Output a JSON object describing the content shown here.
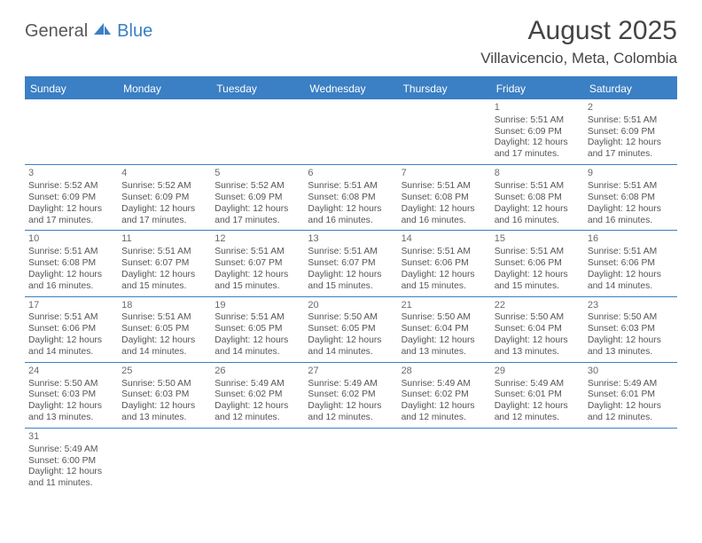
{
  "logo": {
    "word1": "General",
    "word2": "Blue",
    "icon_color": "#3b7fc4",
    "text1_color": "#585858"
  },
  "title": "August 2025",
  "location": "Villavicencio, Meta, Colombia",
  "header_bg": "#3b7fc4",
  "weekdays": [
    "Sunday",
    "Monday",
    "Tuesday",
    "Wednesday",
    "Thursday",
    "Friday",
    "Saturday"
  ],
  "leading_blanks": 5,
  "days": [
    {
      "n": 1,
      "sr": "5:51 AM",
      "ss": "6:09 PM",
      "dh": 12,
      "dm": 17
    },
    {
      "n": 2,
      "sr": "5:51 AM",
      "ss": "6:09 PM",
      "dh": 12,
      "dm": 17
    },
    {
      "n": 3,
      "sr": "5:52 AM",
      "ss": "6:09 PM",
      "dh": 12,
      "dm": 17
    },
    {
      "n": 4,
      "sr": "5:52 AM",
      "ss": "6:09 PM",
      "dh": 12,
      "dm": 17
    },
    {
      "n": 5,
      "sr": "5:52 AM",
      "ss": "6:09 PM",
      "dh": 12,
      "dm": 17
    },
    {
      "n": 6,
      "sr": "5:51 AM",
      "ss": "6:08 PM",
      "dh": 12,
      "dm": 16
    },
    {
      "n": 7,
      "sr": "5:51 AM",
      "ss": "6:08 PM",
      "dh": 12,
      "dm": 16
    },
    {
      "n": 8,
      "sr": "5:51 AM",
      "ss": "6:08 PM",
      "dh": 12,
      "dm": 16
    },
    {
      "n": 9,
      "sr": "5:51 AM",
      "ss": "6:08 PM",
      "dh": 12,
      "dm": 16
    },
    {
      "n": 10,
      "sr": "5:51 AM",
      "ss": "6:08 PM",
      "dh": 12,
      "dm": 16
    },
    {
      "n": 11,
      "sr": "5:51 AM",
      "ss": "6:07 PM",
      "dh": 12,
      "dm": 15
    },
    {
      "n": 12,
      "sr": "5:51 AM",
      "ss": "6:07 PM",
      "dh": 12,
      "dm": 15
    },
    {
      "n": 13,
      "sr": "5:51 AM",
      "ss": "6:07 PM",
      "dh": 12,
      "dm": 15
    },
    {
      "n": 14,
      "sr": "5:51 AM",
      "ss": "6:06 PM",
      "dh": 12,
      "dm": 15
    },
    {
      "n": 15,
      "sr": "5:51 AM",
      "ss": "6:06 PM",
      "dh": 12,
      "dm": 15
    },
    {
      "n": 16,
      "sr": "5:51 AM",
      "ss": "6:06 PM",
      "dh": 12,
      "dm": 14
    },
    {
      "n": 17,
      "sr": "5:51 AM",
      "ss": "6:06 PM",
      "dh": 12,
      "dm": 14
    },
    {
      "n": 18,
      "sr": "5:51 AM",
      "ss": "6:05 PM",
      "dh": 12,
      "dm": 14
    },
    {
      "n": 19,
      "sr": "5:51 AM",
      "ss": "6:05 PM",
      "dh": 12,
      "dm": 14
    },
    {
      "n": 20,
      "sr": "5:50 AM",
      "ss": "6:05 PM",
      "dh": 12,
      "dm": 14
    },
    {
      "n": 21,
      "sr": "5:50 AM",
      "ss": "6:04 PM",
      "dh": 12,
      "dm": 13
    },
    {
      "n": 22,
      "sr": "5:50 AM",
      "ss": "6:04 PM",
      "dh": 12,
      "dm": 13
    },
    {
      "n": 23,
      "sr": "5:50 AM",
      "ss": "6:03 PM",
      "dh": 12,
      "dm": 13
    },
    {
      "n": 24,
      "sr": "5:50 AM",
      "ss": "6:03 PM",
      "dh": 12,
      "dm": 13
    },
    {
      "n": 25,
      "sr": "5:50 AM",
      "ss": "6:03 PM",
      "dh": 12,
      "dm": 13
    },
    {
      "n": 26,
      "sr": "5:49 AM",
      "ss": "6:02 PM",
      "dh": 12,
      "dm": 12
    },
    {
      "n": 27,
      "sr": "5:49 AM",
      "ss": "6:02 PM",
      "dh": 12,
      "dm": 12
    },
    {
      "n": 28,
      "sr": "5:49 AM",
      "ss": "6:02 PM",
      "dh": 12,
      "dm": 12
    },
    {
      "n": 29,
      "sr": "5:49 AM",
      "ss": "6:01 PM",
      "dh": 12,
      "dm": 12
    },
    {
      "n": 30,
      "sr": "5:49 AM",
      "ss": "6:01 PM",
      "dh": 12,
      "dm": 12
    },
    {
      "n": 31,
      "sr": "5:49 AM",
      "ss": "6:00 PM",
      "dh": 12,
      "dm": 11
    }
  ],
  "labels": {
    "sunrise": "Sunrise:",
    "sunset": "Sunset:",
    "daylight_prefix": "Daylight:",
    "hours_word": "hours",
    "and_word": "and",
    "minutes_word": "minutes."
  }
}
